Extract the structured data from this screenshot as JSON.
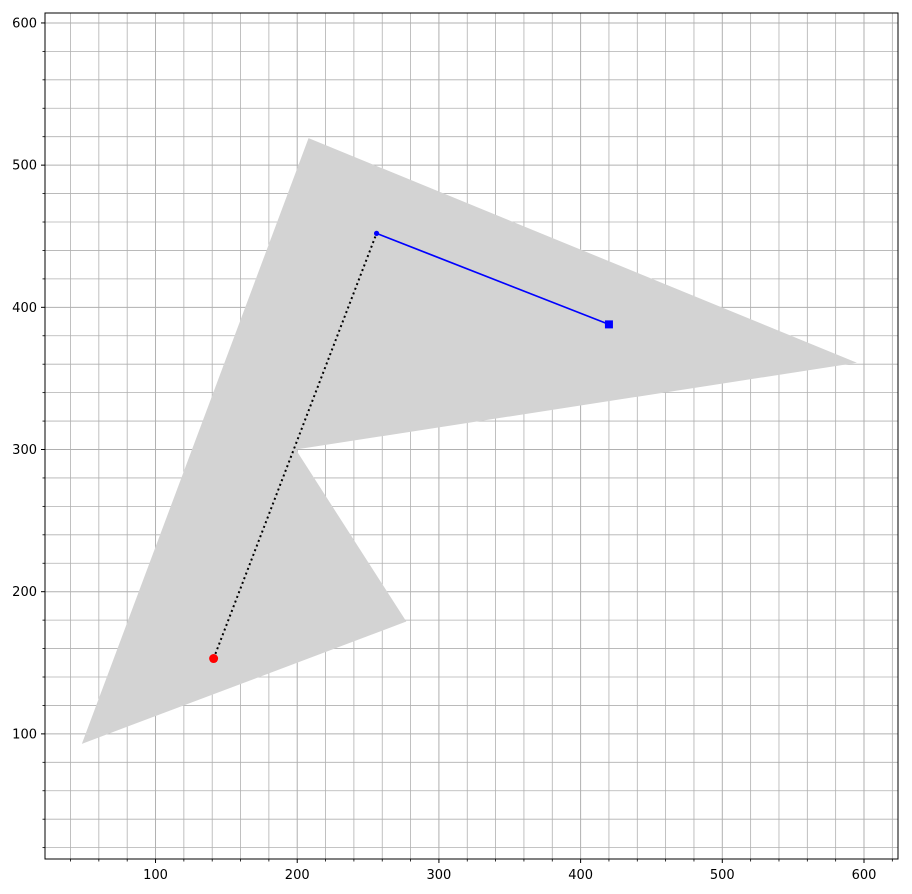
{
  "chart_data": {
    "type": "scatter",
    "title": "",
    "xlabel": "",
    "ylabel": "",
    "xlim": [
      22,
      624
    ],
    "ylim": [
      12,
      607
    ],
    "x_ticks": [
      100,
      200,
      300,
      400,
      500,
      600
    ],
    "y_ticks": [
      100,
      200,
      300,
      400,
      500,
      600
    ],
    "x_tick_labels": [
      "100",
      "200",
      "300",
      "400",
      "500",
      "600"
    ],
    "y_tick_labels": [
      "100",
      "200",
      "300",
      "400",
      "500",
      "600"
    ],
    "minor_step": 20,
    "grid": true,
    "legend": "none",
    "shaded_region": {
      "color": "#d3d3d3",
      "points": [
        [
          48,
          93
        ],
        [
          208,
          519
        ],
        [
          595,
          361
        ],
        [
          199,
          300
        ],
        [
          277,
          179
        ]
      ]
    },
    "dotted_path": {
      "color": "#000000",
      "points": [
        [
          141,
          153
        ],
        [
          256,
          452
        ]
      ]
    },
    "solid_path": {
      "color": "#0000ff",
      "points": [
        [
          256,
          452
        ],
        [
          420,
          388
        ]
      ]
    },
    "markers": [
      {
        "shape": "circle",
        "color": "#ff0000",
        "x": 141,
        "y": 153
      },
      {
        "shape": "small-circle",
        "color": "#0000ff",
        "x": 256,
        "y": 452
      },
      {
        "shape": "square",
        "color": "#0000ff",
        "x": 420,
        "y": 388
      }
    ]
  }
}
